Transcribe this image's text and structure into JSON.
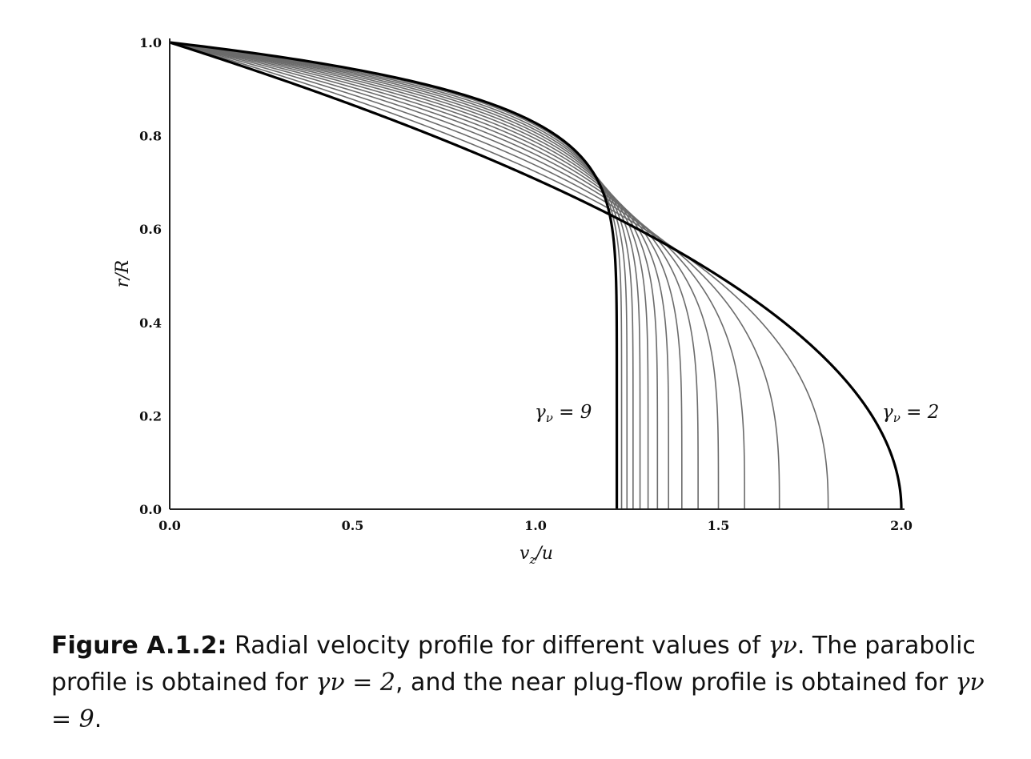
{
  "chart_data": {
    "type": "line",
    "xlabel": "v_z/u",
    "ylabel": "r/R",
    "xlim": [
      0,
      2
    ],
    "ylim": [
      0,
      1
    ],
    "xticks": [
      "0.0",
      "0.5",
      "1.0",
      "1.5",
      "2.0"
    ],
    "yticks": [
      "0.0",
      "0.2",
      "0.4",
      "0.6",
      "0.8",
      "1.0"
    ],
    "gamma_values": [
      2,
      2.5,
      3,
      3.5,
      4,
      4.5,
      5,
      5.5,
      6,
      6.5,
      7,
      7.5,
      8,
      8.5,
      9
    ],
    "highlighted_gamma": [
      2,
      9
    ],
    "profile": "v_z/u = ((gamma+2)/gamma) * (1 - (r/R)^gamma)",
    "grid": false,
    "legend": "none",
    "annotations": [
      {
        "text": "γν = 9",
        "gamma": 9
      },
      {
        "text": "γν = 2",
        "gamma": 2
      }
    ],
    "colors": {
      "highlight": "#000000",
      "other": "#6b6b6b"
    }
  },
  "caption": {
    "label": "Figure A.1.2:",
    "text_1": " Radial velocity profile for different values of ",
    "sym_1": "γν",
    "text_2": ". The parabolic profile is obtained for ",
    "sym_2": "γν = 2",
    "text_3": ", and the near plug-flow profile is obtained for ",
    "sym_3": "γν = 9",
    "text_4": "."
  }
}
